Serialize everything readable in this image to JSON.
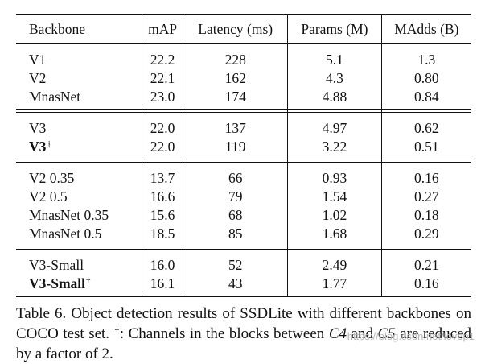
{
  "table": {
    "headers": [
      "Backbone",
      "mAP",
      "Latency (ms)",
      "Params (M)",
      "MAdds (B)"
    ],
    "groups": [
      [
        {
          "name": "V1",
          "bold": false,
          "dagger": false,
          "values": [
            "22.2",
            "228",
            "5.1",
            "1.3"
          ]
        },
        {
          "name": "V2",
          "bold": false,
          "dagger": false,
          "values": [
            "22.1",
            "162",
            "4.3",
            "0.80"
          ]
        },
        {
          "name": "MnasNet",
          "bold": false,
          "dagger": false,
          "values": [
            "23.0",
            "174",
            "4.88",
            "0.84"
          ]
        }
      ],
      [
        {
          "name": "V3",
          "bold": false,
          "dagger": false,
          "values": [
            "22.0",
            "137",
            "4.97",
            "0.62"
          ]
        },
        {
          "name": "V3",
          "bold": true,
          "dagger": true,
          "values": [
            "22.0",
            "119",
            "3.22",
            "0.51"
          ]
        }
      ],
      [
        {
          "name": "V2 0.35",
          "bold": false,
          "dagger": false,
          "values": [
            "13.7",
            "66",
            "0.93",
            "0.16"
          ]
        },
        {
          "name": "V2 0.5",
          "bold": false,
          "dagger": false,
          "values": [
            "16.6",
            "79",
            "1.54",
            "0.27"
          ]
        },
        {
          "name": "MnasNet 0.35",
          "bold": false,
          "dagger": false,
          "values": [
            "15.6",
            "68",
            "1.02",
            "0.18"
          ]
        },
        {
          "name": "MnasNet 0.5",
          "bold": false,
          "dagger": false,
          "values": [
            "18.5",
            "85",
            "1.68",
            "0.29"
          ]
        }
      ],
      [
        {
          "name": "V3-Small",
          "bold": false,
          "dagger": false,
          "values": [
            "16.0",
            "52",
            "2.49",
            "0.21"
          ]
        },
        {
          "name": "V3-Small",
          "bold": true,
          "dagger": true,
          "values": [
            "16.1",
            "43",
            "1.77",
            "0.16"
          ]
        }
      ]
    ],
    "dagger_symbol": "†"
  },
  "caption": {
    "label": "Table 6.",
    "text_part1": "Object detection results of SSDLite with different backbones on COCO test set.",
    "dagger": "†",
    "text_part2": ": Channels in the blocks between",
    "c4": "C4",
    "text_part3": "and",
    "c5": "C5",
    "text_part4": "are reduced by a factor of 2."
  },
  "watermark": "https://blog.csdn.net/lovep1"
}
